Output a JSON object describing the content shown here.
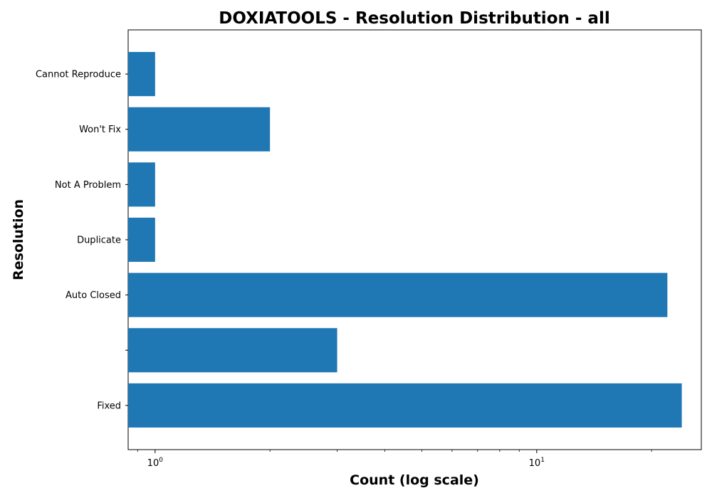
{
  "chart_data": {
    "type": "bar",
    "orientation": "horizontal",
    "title": "DOXIATOOLS - Resolution Distribution - all",
    "xlabel": "Count (log scale)",
    "ylabel": "Resolution",
    "x_scale": "log",
    "xlim": [
      0.85,
      27
    ],
    "x_ticks": [
      {
        "value": 1,
        "base": "10",
        "exponent": "0"
      },
      {
        "value": 10,
        "base": "10",
        "exponent": "1"
      }
    ],
    "categories": [
      "Fixed",
      "",
      "Auto Closed",
      "Duplicate",
      "Not A Problem",
      "Won't Fix",
      "Cannot Reproduce"
    ],
    "values": [
      24,
      3,
      22,
      1,
      1,
      2,
      1
    ],
    "bar_color": "#1f77b4",
    "grid": false,
    "legend": "none"
  }
}
